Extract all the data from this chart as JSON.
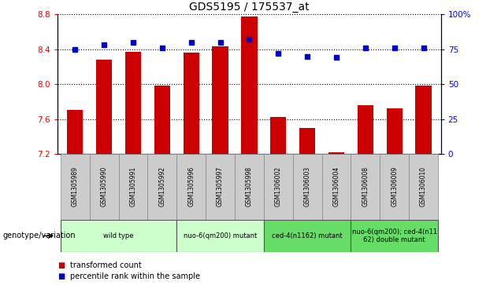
{
  "title": "GDS5195 / 175537_at",
  "samples": [
    "GSM1305989",
    "GSM1305990",
    "GSM1305991",
    "GSM1305992",
    "GSM1305996",
    "GSM1305997",
    "GSM1305998",
    "GSM1306002",
    "GSM1306003",
    "GSM1306004",
    "GSM1306008",
    "GSM1306009",
    "GSM1306010"
  ],
  "transformed_count": [
    7.7,
    8.28,
    8.37,
    7.98,
    8.36,
    8.43,
    8.77,
    7.62,
    7.5,
    7.22,
    7.76,
    7.72,
    7.98
  ],
  "percentile_rank": [
    75,
    78,
    80,
    76,
    80,
    80,
    82,
    72,
    70,
    69,
    76,
    76,
    76
  ],
  "ylim_left": [
    7.2,
    8.8
  ],
  "ylim_right": [
    0,
    100
  ],
  "yticks_left": [
    7.2,
    7.6,
    8.0,
    8.4,
    8.8
  ],
  "yticks_right": [
    0,
    25,
    50,
    75,
    100
  ],
  "groups": [
    {
      "label": "wild type",
      "indices": [
        0,
        1,
        2,
        3
      ],
      "color": "#ccffcc"
    },
    {
      "label": "nuo-6(qm200) mutant",
      "indices": [
        4,
        5,
        6
      ],
      "color": "#ccffcc"
    },
    {
      "label": "ced-4(n1162) mutant",
      "indices": [
        7,
        8,
        9
      ],
      "color": "#66dd66"
    },
    {
      "label": "nuo-6(qm200); ced-4(n11\n62) double mutant",
      "indices": [
        10,
        11,
        12
      ],
      "color": "#66dd66"
    }
  ],
  "bar_color": "#cc0000",
  "dot_color": "#0000cc",
  "bar_bottom": 7.2,
  "legend_labels": [
    "transformed count",
    "percentile rank within the sample"
  ],
  "legend_colors": [
    "#cc0000",
    "#0000cc"
  ],
  "xlabel_label": "genotype/variation"
}
